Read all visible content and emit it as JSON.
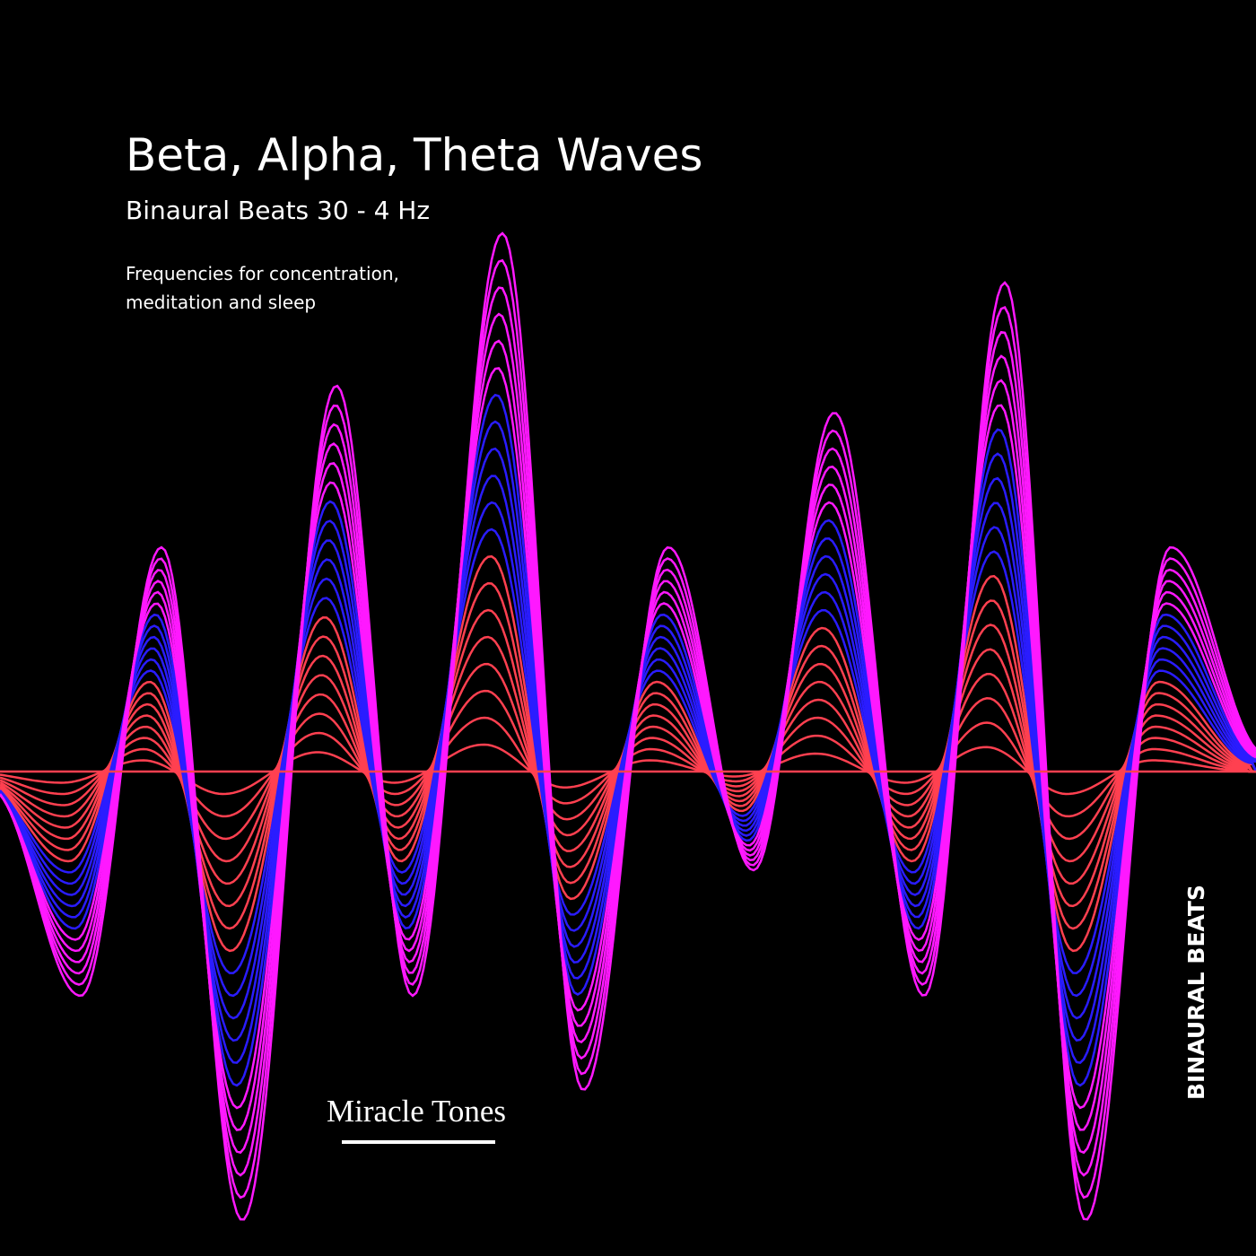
{
  "cover": {
    "title": "Beta, Alpha, Theta Waves",
    "subtitle": "Binaural Beats 30 - 4 Hz",
    "description_lines": [
      "Frequencies for concentration,",
      "meditation and sleep"
    ],
    "brand": "Miracle Tones",
    "side_label": "BINAURAL BEATS"
  }
}
